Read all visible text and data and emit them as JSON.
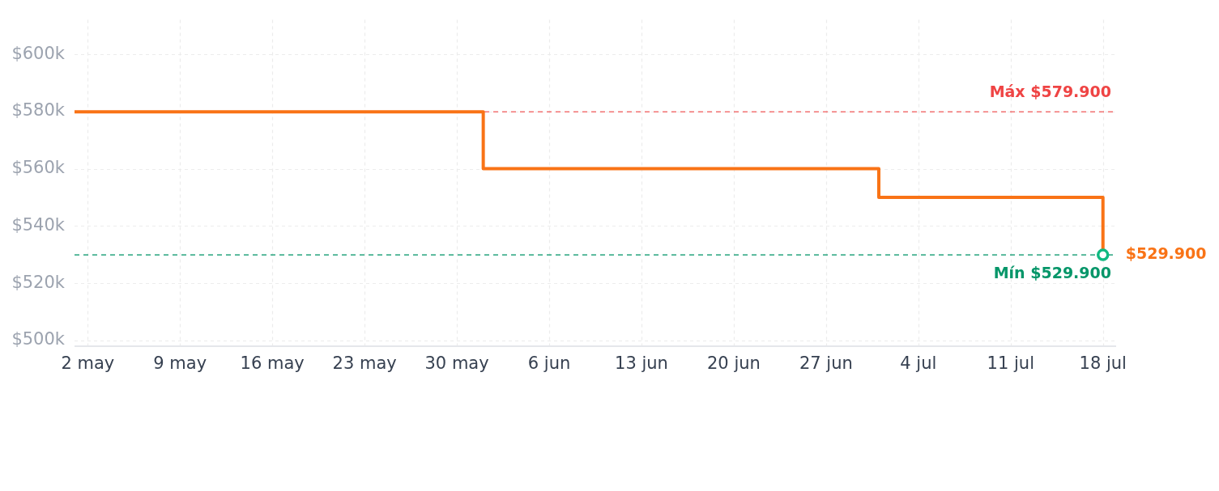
{
  "chart_data": {
    "type": "step",
    "series": [
      {
        "color": "#f97316",
        "x": [
          "--05-01",
          "--06-01",
          "--07-01",
          "--07-18"
        ],
        "values": [
          579900,
          560000,
          550000,
          529900
        ],
        "marker": "none",
        "value_labels": [
          null,
          null,
          null,
          "$529.900"
        ]
      },
      {
        "type": "scatter",
        "color": "#10b981",
        "x": [
          "--07-18"
        ],
        "values": [
          529900
        ],
        "marker": "circle"
      }
    ],
    "xlim": [
      "--05-01",
      "--07-19"
    ],
    "xticks": [
      {
        "value": "--05-02",
        "label": "2 may"
      },
      {
        "value": "--05-09",
        "label": "9 may"
      },
      {
        "value": "--05-16",
        "label": "16 may"
      },
      {
        "value": "--05-23",
        "label": "23 may"
      },
      {
        "value": "--05-30",
        "label": "30 may"
      },
      {
        "value": "--06-06",
        "label": "6 jun"
      },
      {
        "value": "--06-13",
        "label": "13 jun"
      },
      {
        "value": "--06-20",
        "label": "20 jun"
      },
      {
        "value": "--06-27",
        "label": "27 jun"
      },
      {
        "value": "--07-04",
        "label": "4 jul"
      },
      {
        "value": "--07-11",
        "label": "11 jul"
      },
      {
        "value": "--07-18",
        "label": "18 jul"
      }
    ],
    "ylim": [
      498000,
      612000
    ],
    "yticks": [
      {
        "value": 500000,
        "label": "$500k"
      },
      {
        "value": 520000,
        "label": "$520k"
      },
      {
        "value": 540000,
        "label": "$540k"
      },
      {
        "value": 560000,
        "label": "$560k"
      },
      {
        "value": 580000,
        "label": "$580k"
      },
      {
        "value": 600000,
        "label": "$600k"
      }
    ],
    "grid": true,
    "ref_lines": [
      {
        "axis": "y",
        "value": 579900,
        "label": "Máx $579.900",
        "color": "#ef4444",
        "line_style": "dashed"
      },
      {
        "axis": "y",
        "value": 529900,
        "label": "Mín $529.900",
        "color": "#059669",
        "line_style": "dashed"
      }
    ]
  }
}
